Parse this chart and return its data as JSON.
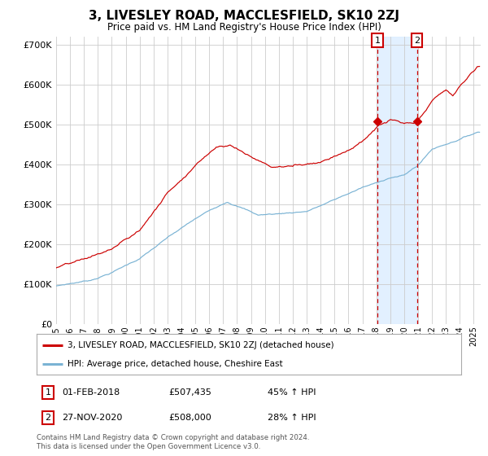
{
  "title": "3, LIVESLEY ROAD, MACCLESFIELD, SK10 2ZJ",
  "subtitle": "Price paid vs. HM Land Registry's House Price Index (HPI)",
  "legend_line1": "3, LIVESLEY ROAD, MACCLESFIELD, SK10 2ZJ (detached house)",
  "legend_line2": "HPI: Average price, detached house, Cheshire East",
  "annotation1_date": "01-FEB-2018",
  "annotation1_price": "£507,435",
  "annotation1_pct": "45% ↑ HPI",
  "annotation2_date": "27-NOV-2020",
  "annotation2_price": "£508,000",
  "annotation2_pct": "28% ↑ HPI",
  "footer": "Contains HM Land Registry data © Crown copyright and database right 2024.\nThis data is licensed under the Open Government Licence v3.0.",
  "hpi_color": "#7ab3d4",
  "price_color": "#cc0000",
  "shade_color": "#ddeeff",
  "grid_color": "#cccccc",
  "background_color": "#ffffff",
  "ylim": [
    0,
    720000
  ],
  "yticks": [
    0,
    100000,
    200000,
    300000,
    400000,
    500000,
    600000,
    700000
  ],
  "ytick_labels": [
    "£0",
    "£100K",
    "£200K",
    "£300K",
    "£400K",
    "£500K",
    "£600K",
    "£700K"
  ],
  "xlim_start": 1995.0,
  "xlim_end": 2025.5,
  "sale1_x": 2018.083,
  "sale1_y": 507435,
  "sale2_x": 2020.917,
  "sale2_y": 508000
}
